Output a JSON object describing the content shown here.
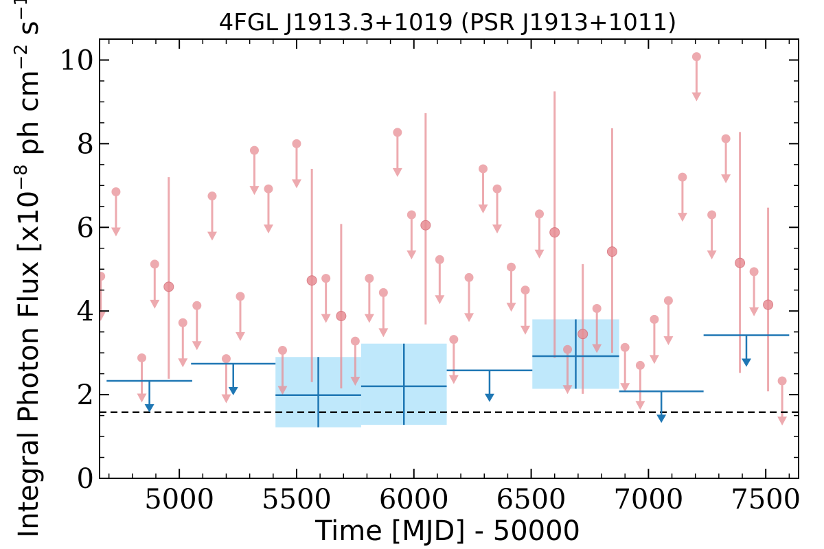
{
  "chart_data": {
    "type": "scatter",
    "title": "4FGL J1913.3+1019 (PSR J1913+1011)",
    "xlabel": "Time [MJD] - 50000",
    "ylabel": "Integral Photon Flux [x10",
    "ylabel_exp1": "−8",
    "ylabel_mid": " ph cm",
    "ylabel_exp2": "−2",
    "ylabel_mid2": " s",
    "ylabel_exp3": "−1",
    "ylabel_end": "]",
    "xlim": [
      4660,
      7640
    ],
    "ylim": [
      0,
      10.5
    ],
    "xticks": [
      5000,
      5500,
      6000,
      6500,
      7000,
      7500
    ],
    "yticks": [
      0,
      2,
      4,
      6,
      8,
      10
    ],
    "reference_level": 1.58,
    "colors": {
      "monthly": "#e88e95",
      "yearly": "#1f77b4",
      "band": "#bfe8fb",
      "reference": "#000000"
    },
    "monthly_upper_limits": [
      {
        "x": 4665,
        "y": 4.83
      },
      {
        "x": 4730,
        "y": 6.85
      },
      {
        "x": 4840,
        "y": 2.88
      },
      {
        "x": 4895,
        "y": 5.12
      },
      {
        "x": 5015,
        "y": 3.72
      },
      {
        "x": 5075,
        "y": 4.13
      },
      {
        "x": 5140,
        "y": 6.75
      },
      {
        "x": 5200,
        "y": 2.86
      },
      {
        "x": 5260,
        "y": 4.35
      },
      {
        "x": 5320,
        "y": 7.84
      },
      {
        "x": 5380,
        "y": 6.92
      },
      {
        "x": 5440,
        "y": 3.06
      },
      {
        "x": 5500,
        "y": 8.0
      },
      {
        "x": 5625,
        "y": 4.78
      },
      {
        "x": 5750,
        "y": 3.28
      },
      {
        "x": 5810,
        "y": 4.78
      },
      {
        "x": 5870,
        "y": 4.44
      },
      {
        "x": 5930,
        "y": 8.27
      },
      {
        "x": 5990,
        "y": 6.3
      },
      {
        "x": 6110,
        "y": 5.23
      },
      {
        "x": 6170,
        "y": 3.32
      },
      {
        "x": 6235,
        "y": 4.8
      },
      {
        "x": 6295,
        "y": 7.4
      },
      {
        "x": 6355,
        "y": 6.92
      },
      {
        "x": 6415,
        "y": 5.05
      },
      {
        "x": 6475,
        "y": 4.5
      },
      {
        "x": 6535,
        "y": 6.32
      },
      {
        "x": 6655,
        "y": 3.08
      },
      {
        "x": 6780,
        "y": 4.06
      },
      {
        "x": 6900,
        "y": 3.13
      },
      {
        "x": 6965,
        "y": 2.7
      },
      {
        "x": 7025,
        "y": 3.8
      },
      {
        "x": 7085,
        "y": 4.25
      },
      {
        "x": 7145,
        "y": 7.2
      },
      {
        "x": 7205,
        "y": 10.08
      },
      {
        "x": 7270,
        "y": 6.3
      },
      {
        "x": 7330,
        "y": 8.12
      },
      {
        "x": 7450,
        "y": 4.94
      },
      {
        "x": 7570,
        "y": 2.33
      }
    ],
    "monthly_detections": [
      {
        "x": 4955,
        "y": 4.58,
        "low": 2.38,
        "high": 7.2
      },
      {
        "x": 5565,
        "y": 4.73,
        "low": 2.3,
        "high": 7.4
      },
      {
        "x": 5690,
        "y": 3.88,
        "low": 2.15,
        "high": 6.08
      },
      {
        "x": 6050,
        "y": 6.05,
        "low": 3.68,
        "high": 8.73
      },
      {
        "x": 6600,
        "y": 5.88,
        "low": 2.88,
        "high": 9.25
      },
      {
        "x": 6720,
        "y": 3.45,
        "low": 2.02,
        "high": 5.12
      },
      {
        "x": 6845,
        "y": 5.42,
        "low": 3.0,
        "high": 8.37
      },
      {
        "x": 7390,
        "y": 5.15,
        "low": 2.52,
        "high": 8.28
      },
      {
        "x": 7510,
        "y": 4.15,
        "low": 2.08,
        "high": 6.47
      }
    ],
    "yearly_upper_limits": [
      {
        "x0": 4690,
        "x1": 5055,
        "y": 2.33
      },
      {
        "x0": 5050,
        "x1": 5410,
        "y": 2.74
      },
      {
        "x0": 6140,
        "x1": 6505,
        "y": 2.58
      },
      {
        "x0": 6875,
        "x1": 7235,
        "y": 2.08
      },
      {
        "x0": 7235,
        "x1": 7600,
        "y": 3.42
      }
    ],
    "yearly_detections": [
      {
        "x0": 5410,
        "x1": 5775,
        "y": 1.99,
        "low": 1.22,
        "high": 2.9
      },
      {
        "x0": 5775,
        "x1": 6140,
        "y": 2.2,
        "low": 1.28,
        "high": 3.22
      },
      {
        "x0": 6505,
        "x1": 6875,
        "y": 2.92,
        "low": 2.14,
        "high": 3.8
      }
    ]
  }
}
